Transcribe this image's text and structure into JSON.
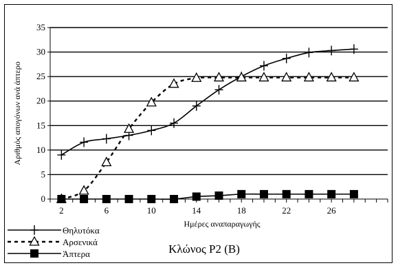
{
  "chart_data": {
    "type": "line",
    "title": "Κλώνος P2 (B)",
    "xlabel": "Ημέρες αναπαραγωγής",
    "ylabel": "Αριθμός απογόνων ανά άπτερο",
    "xlim": [
      1,
      31
    ],
    "ylim": [
      0,
      35
    ],
    "x_ticks": [
      2,
      6,
      10,
      14,
      18,
      22,
      26
    ],
    "y_ticks": [
      0,
      5,
      10,
      15,
      20,
      25,
      30,
      35
    ],
    "grid": "horizontal",
    "legend_position": "bottom-left",
    "x": [
      2,
      4,
      6,
      8,
      10,
      12,
      14,
      16,
      18,
      20,
      22,
      24,
      26,
      28
    ],
    "series": [
      {
        "name": "Θηλυτόκα",
        "marker": "plus",
        "line": "solid",
        "values": [
          9,
          11.6,
          12.3,
          13,
          14,
          15.5,
          19,
          22.3,
          25,
          27.2,
          28.7,
          29.9,
          30.3,
          30.6
        ]
      },
      {
        "name": "Αρσενικά",
        "marker": "triangle",
        "line": "dashed",
        "values": [
          0,
          1.7,
          7.5,
          14.3,
          19.7,
          23.5,
          24.7,
          24.8,
          24.8,
          24.8,
          24.8,
          24.8,
          24.8,
          24.8
        ]
      },
      {
        "name": "Άπτερα",
        "marker": "square",
        "line": "solid",
        "values": [
          0,
          0,
          0,
          0,
          0,
          0,
          0.5,
          0.7,
          1,
          1,
          1,
          1,
          1,
          1
        ]
      }
    ]
  }
}
